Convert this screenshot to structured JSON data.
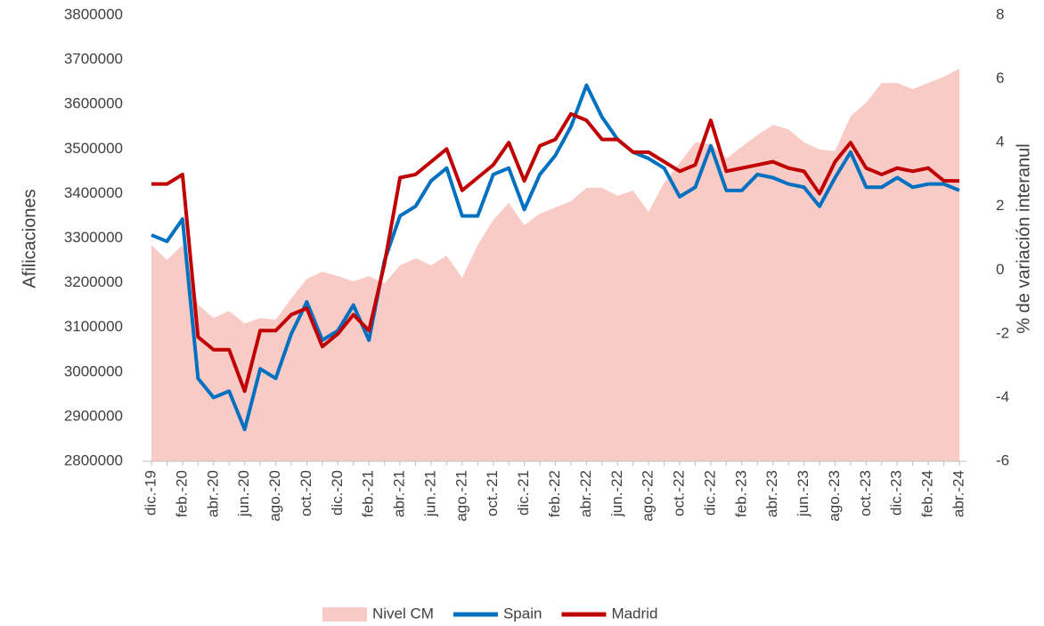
{
  "chart_data": {
    "type": "line",
    "y_label": "Afilicaciones",
    "y2_label": "% de variación interanul",
    "categories": [
      "dic.-19",
      null,
      "feb.-20",
      null,
      "abr.-20",
      null,
      "jun.-20",
      null,
      "ago.-20",
      null,
      "oct.-20",
      null,
      "dic.-20",
      null,
      "feb.-21",
      null,
      "abr.-21",
      null,
      "jun.-21",
      null,
      "ago.-21",
      null,
      "oct.-21",
      null,
      "dic.-21",
      null,
      "feb.-22",
      null,
      "abr.-22",
      null,
      "jun.-22",
      null,
      "ago.-22",
      null,
      "oct.-22",
      null,
      "dic.-22",
      null,
      "feb.-23",
      null,
      "abr.-23",
      null,
      "jun.-23",
      null,
      "ago.-23",
      null,
      "oct.-23",
      null,
      "dic.-23",
      null,
      "feb.-24",
      null,
      "abr.-24"
    ],
    "series": [
      {
        "name": "Nivel CM",
        "kind": "area",
        "color": "#f9cbc6",
        "values": [
          3285000,
          3251000,
          3285000,
          3151000,
          3121000,
          3137000,
          3109000,
          3121000,
          3117000,
          3165000,
          3209000,
          3225000,
          3215000,
          3203000,
          3215000,
          3199000,
          3239000,
          3255000,
          3239000,
          3261000,
          3211000,
          3285000,
          3341000,
          3379000,
          3329000,
          3355000,
          3369000,
          3383000,
          3413000,
          3413000,
          3395000,
          3407000,
          3359000,
          3425000,
          3469000,
          3515000,
          3511000,
          3479000,
          3505000,
          3531000,
          3554000,
          3544000,
          3515000,
          3499000,
          3495000,
          3574000,
          3604000,
          3648000,
          3648000,
          3634000,
          3648000,
          3662000,
          3680000
        ]
      },
      {
        "name": "Spain",
        "axis": "y2",
        "color": "#0070c0",
        "values": [
          1.1,
          0.9,
          1.6,
          -3.4,
          -4.0,
          -3.8,
          -5.0,
          -3.1,
          -3.4,
          -2.0,
          -1.0,
          -2.2,
          -1.9,
          -1.1,
          -2.2,
          0.3,
          1.7,
          2.0,
          2.8,
          3.2,
          1.7,
          1.7,
          3.0,
          3.2,
          1.9,
          3.0,
          3.6,
          4.5,
          5.8,
          4.8,
          4.1,
          3.7,
          3.5,
          3.2,
          2.3,
          2.6,
          3.9,
          2.5,
          2.5,
          3.0,
          2.9,
          2.7,
          2.6,
          2.0,
          2.9,
          3.7,
          2.6,
          2.6,
          2.9,
          2.6,
          2.7,
          2.7,
          2.5
        ]
      },
      {
        "name": "Madrid",
        "axis": "y2",
        "color": "#c00000",
        "values": [
          2.7,
          2.7,
          3.0,
          -2.1,
          -2.5,
          -2.5,
          -3.8,
          -1.9,
          -1.9,
          -1.4,
          -1.2,
          -2.4,
          -2.0,
          -1.4,
          -1.9,
          0.2,
          2.9,
          3.0,
          3.4,
          3.8,
          2.5,
          2.9,
          3.3,
          4.0,
          2.8,
          3.9,
          4.1,
          4.9,
          4.7,
          4.1,
          4.1,
          3.7,
          3.7,
          3.4,
          3.1,
          3.3,
          4.7,
          3.1,
          3.2,
          3.3,
          3.4,
          3.2,
          3.1,
          2.4,
          3.4,
          4.0,
          3.2,
          3.0,
          3.2,
          3.1,
          3.2,
          2.8,
          2.8
        ]
      }
    ],
    "ylim": [
      2800000,
      3800000
    ],
    "yticks": [
      2800000,
      2900000,
      3000000,
      3100000,
      3200000,
      3300000,
      3400000,
      3500000,
      3600000,
      3700000,
      3800000
    ],
    "y2lim": [
      -6,
      8
    ],
    "y2ticks": [
      -6,
      -4,
      -2,
      0,
      2,
      4,
      6,
      8
    ],
    "legend": "bottom"
  }
}
